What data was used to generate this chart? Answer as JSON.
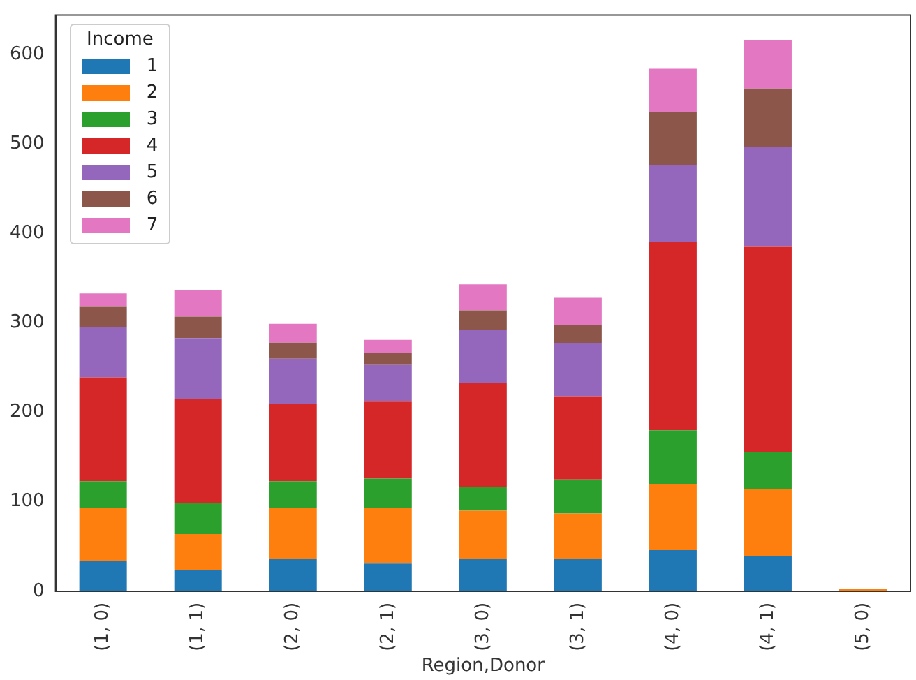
{
  "chart_data": {
    "type": "bar",
    "stacked": true,
    "xlabel": "Region,Donor",
    "legend_title": "Income",
    "legend": "top left",
    "categories": [
      "(1, 0)",
      "(1, 1)",
      "(2, 0)",
      "(2, 1)",
      "(3, 0)",
      "(3, 1)",
      "(4, 0)",
      "(4, 1)",
      "(5, 0)"
    ],
    "series": [
      {
        "name": "1",
        "color": "#1f77b4",
        "values": [
          34,
          24,
          36,
          31,
          36,
          36,
          46,
          39,
          0
        ]
      },
      {
        "name": "2",
        "color": "#ff7f0e",
        "values": [
          59,
          40,
          57,
          62,
          54,
          51,
          74,
          75,
          3
        ]
      },
      {
        "name": "3",
        "color": "#2ca02c",
        "values": [
          30,
          35,
          30,
          33,
          27,
          38,
          60,
          42,
          0
        ]
      },
      {
        "name": "4",
        "color": "#d62728",
        "values": [
          116,
          116,
          86,
          86,
          116,
          93,
          210,
          229,
          0
        ]
      },
      {
        "name": "5",
        "color": "#9467bd",
        "values": [
          56,
          68,
          51,
          41,
          59,
          59,
          86,
          112,
          0
        ]
      },
      {
        "name": "6",
        "color": "#8c564b",
        "values": [
          23,
          24,
          18,
          13,
          22,
          21,
          60,
          65,
          0
        ]
      },
      {
        "name": "7",
        "color": "#e377c2",
        "values": [
          15,
          30,
          21,
          15,
          29,
          30,
          48,
          54,
          0
        ]
      }
    ],
    "ylim": [
      0,
      644
    ],
    "yticks": [
      0,
      100,
      200,
      300,
      400,
      500,
      600
    ],
    "grid": false
  }
}
